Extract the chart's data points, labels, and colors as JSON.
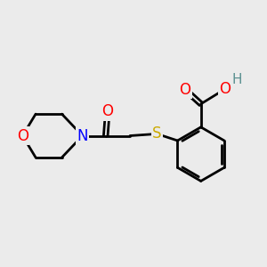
{
  "background_color": "#ebebeb",
  "atom_colors": {
    "C": "#000000",
    "O": "#ff0000",
    "N": "#0000ff",
    "S": "#ccaa00",
    "H": "#5a9090"
  },
  "bond_color": "#000000",
  "bond_width": 2.0,
  "font_size": 12,
  "figsize": [
    3.0,
    3.0
  ],
  "dpi": 100,
  "xlim": [
    -3.5,
    3.5
  ],
  "ylim": [
    -2.5,
    2.5
  ]
}
